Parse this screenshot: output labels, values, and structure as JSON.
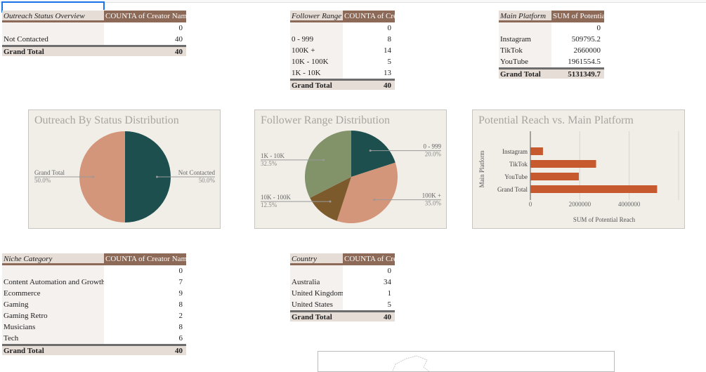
{
  "tables": {
    "outreach": {
      "header": [
        "Outreach Status Overview",
        "COUNTA of Creator Name"
      ],
      "rows": [
        [
          "",
          "0"
        ],
        [
          "Not Contacted",
          "40"
        ]
      ],
      "total": [
        "Grand Total",
        "40"
      ]
    },
    "follower": {
      "header": [
        "Follower Range",
        "COUNTA of Creator Name"
      ],
      "rows": [
        [
          "",
          "0"
        ],
        [
          "0 - 999",
          "8"
        ],
        [
          "100K +",
          "14"
        ],
        [
          "10K - 100K",
          "5"
        ],
        [
          "1K - 10K",
          "13"
        ]
      ],
      "total": [
        "Grand Total",
        "40"
      ]
    },
    "platform": {
      "header": [
        "Main Platform",
        "SUM of Potential Reach"
      ],
      "rows": [
        [
          "",
          "0"
        ],
        [
          "Instagram",
          "509795.2"
        ],
        [
          "TikTok",
          "2660000"
        ],
        [
          "YouTube",
          "1961554.5"
        ]
      ],
      "total": [
        "Grand Total",
        "5131349.7"
      ]
    },
    "niche": {
      "header": [
        "Niche Category",
        "COUNTA of Creator Name"
      ],
      "rows": [
        [
          "",
          "0"
        ],
        [
          "Content Automation and Growth",
          "7"
        ],
        [
          "Ecommerce",
          "9"
        ],
        [
          "Gaming",
          "8"
        ],
        [
          "Gaming Retro",
          "2"
        ],
        [
          "Musicians",
          "8"
        ],
        [
          "Tech",
          "6"
        ]
      ],
      "total": [
        "Grand Total",
        "40"
      ]
    },
    "country": {
      "header": [
        "Country",
        "COUNTA of Creator Name"
      ],
      "rows": [
        [
          "",
          "0"
        ],
        [
          "Australia",
          "34"
        ],
        [
          "United Kingdom",
          "1"
        ],
        [
          "United States",
          "5"
        ]
      ],
      "total": [
        "Grand Total",
        "40"
      ]
    }
  },
  "chart_data": [
    {
      "type": "pie",
      "title": "Outreach By Status Distribution",
      "slices": [
        {
          "label": "Not Contacted",
          "value": 40,
          "pct": "50.0%",
          "color": "#1e4f4f"
        },
        {
          "label": "Grand Total",
          "value": 40,
          "pct": "50.0%",
          "color": "#d4967a"
        }
      ]
    },
    {
      "type": "pie",
      "title": "Follower Range Distribution",
      "slices": [
        {
          "label": "0 - 999",
          "value": 8,
          "pct": "20.0%",
          "color": "#1e4f4f"
        },
        {
          "label": "100K +",
          "value": 14,
          "pct": "35.0%",
          "color": "#d4967a"
        },
        {
          "label": "10K - 100K",
          "value": 5,
          "pct": "12.5%",
          "color": "#7d5a2c"
        },
        {
          "label": "1K - 10K",
          "value": 13,
          "pct": "32.5%",
          "color": "#82936a"
        }
      ]
    },
    {
      "type": "bar",
      "orientation": "horizontal",
      "title": "Potential Reach vs. Main Platform",
      "categories": [
        "Instagram",
        "TikTok",
        "YouTube",
        "Grand Total"
      ],
      "values": [
        509795.2,
        2660000,
        1961554.5,
        5131349.7
      ],
      "xlabel": "SUM of Potential Reach",
      "ylabel": "Main Platform",
      "xlim": [
        0,
        6000000
      ],
      "xticks": [
        "0",
        "2000000",
        "4000000"
      ],
      "grid": true,
      "color": "#c65a2e"
    }
  ]
}
